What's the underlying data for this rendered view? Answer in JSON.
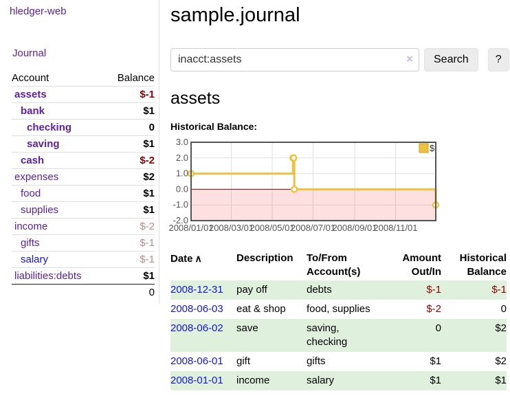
{
  "colors": {
    "link_purple": "#5d21a0",
    "link_blue": "#1414e6",
    "negative_strong": "#8b0000",
    "negative_muted": "#b98b8b",
    "row_green": "#dff0dc",
    "chart_line": "#edc240",
    "chart_negative_fill": "rgba(255,0,0,0.12)",
    "chart_zero_line": "#800000",
    "chart_border": "#545454"
  },
  "sidebar": {
    "brand": "hledger-web",
    "nav_journal": "Journal",
    "accounts": {
      "header_account": "Account",
      "header_balance": "Balance",
      "rows": [
        {
          "name": "assets",
          "balance": "$-1",
          "indent": 0,
          "in_assets": true
        },
        {
          "name": "bank",
          "balance": "$1",
          "indent": 1,
          "in_assets": true
        },
        {
          "name": "checking",
          "balance": "0",
          "indent": 2,
          "in_assets": true
        },
        {
          "name": "saving",
          "balance": "$1",
          "indent": 2,
          "in_assets": true
        },
        {
          "name": "cash",
          "balance": "$-2",
          "indent": 1,
          "in_assets": true
        },
        {
          "name": "expenses",
          "balance": "$2",
          "indent": 0,
          "in_assets": false
        },
        {
          "name": "food",
          "balance": "$1",
          "indent": 1,
          "in_assets": false
        },
        {
          "name": "supplies",
          "balance": "$1",
          "indent": 1,
          "in_assets": false
        },
        {
          "name": "income",
          "balance": "$-2",
          "indent": 0,
          "in_assets": false
        },
        {
          "name": "gifts",
          "balance": "$-1",
          "indent": 1,
          "in_assets": false
        },
        {
          "name": "salary",
          "balance": "$-1",
          "indent": 1,
          "in_assets": false,
          "unvisited": true
        },
        {
          "name": "liabilities:debts",
          "balance": "$1",
          "indent": 0,
          "in_assets": false
        }
      ],
      "total": "0"
    }
  },
  "main": {
    "title": "sample.journal",
    "search": {
      "value": "inacct:assets",
      "clear_icon": "×",
      "search_button": "Search",
      "help_button": "?"
    },
    "account_heading": "assets",
    "section_label": "Historical Balance:"
  },
  "chart_data": {
    "type": "line",
    "step": true,
    "title": "Historical Balance:",
    "series": [
      {
        "name": "$",
        "color": "#edc240",
        "points": [
          [
            "2008-01-01",
            1
          ],
          [
            "2008-06-01",
            2
          ],
          [
            "2008-06-02",
            2
          ],
          [
            "2008-06-03",
            0
          ],
          [
            "2008-12-31",
            -1
          ]
        ]
      }
    ],
    "xlim": [
      "2008-01-01",
      "2008-12-31"
    ],
    "ylim": [
      -2,
      3
    ],
    "y_ticks": [
      "3.0",
      "2.0",
      "1.0",
      "0.0",
      "-1.0",
      "-2.0"
    ],
    "x_ticks": [
      "2008/01/01",
      "2008/03/01",
      "2008/05/01",
      "2008/07/01",
      "2008/09/01",
      "2008/11/01"
    ],
    "legend": {
      "label": "$",
      "position": "top-right"
    },
    "grid": true,
    "zero_line_color": "#800000",
    "negative_region_fill": "rgba(255,0,0,0.12)"
  },
  "register": {
    "headers": {
      "date": "Date",
      "sort_icon": "∧",
      "description": "Description",
      "accounts": "To/From Account(s)",
      "amount": "Amount Out/In",
      "balance": "Historical Balance"
    },
    "rows": [
      {
        "date": "2008-12-31",
        "description": "pay off",
        "accounts": "debts",
        "amount": "$-1",
        "balance": "$-1"
      },
      {
        "date": "2008-06-03",
        "description": "eat & shop",
        "accounts": "food, supplies",
        "amount": "$-2",
        "balance": "0"
      },
      {
        "date": "2008-06-02",
        "description": "save",
        "accounts": "saving, checking",
        "amount": "0",
        "balance": "$2"
      },
      {
        "date": "2008-06-01",
        "description": "gift",
        "accounts": "gifts",
        "amount": "$1",
        "balance": "$2"
      },
      {
        "date": "2008-01-01",
        "description": "income",
        "accounts": "salary",
        "amount": "$1",
        "balance": "$1"
      }
    ]
  }
}
